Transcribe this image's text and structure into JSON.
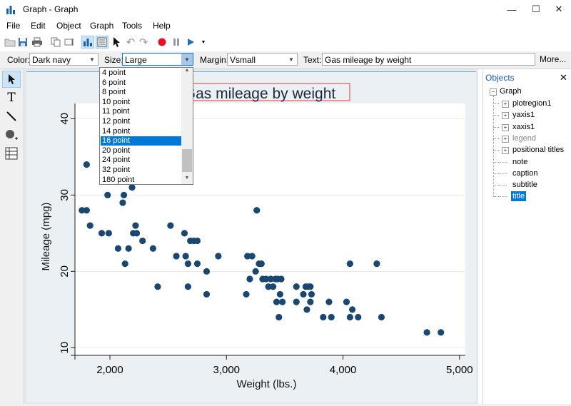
{
  "window": {
    "title": "Graph - Graph",
    "minimize": "—",
    "maximize": "☐",
    "close": "✕"
  },
  "menu": [
    "File",
    "Edit",
    "Object",
    "Graph",
    "Tools",
    "Help"
  ],
  "properties": {
    "color_label": "Color:",
    "color_value": "Dark navy",
    "size_label": "Size:",
    "size_value": "Large",
    "margin_label": "Margin:",
    "margin_value": "Vsmall",
    "text_label": "Text:",
    "text_value": "Gas mileage by weight",
    "more_label": "More..."
  },
  "size_dropdown": {
    "options": [
      "4 point",
      "6 point",
      "8 point",
      "10 point",
      "11 point",
      "12 point",
      "14 point",
      "16 point",
      "20 point",
      "24 point",
      "32 point",
      "180 point"
    ],
    "selected_index": 7
  },
  "objects_panel": {
    "title": "Objects",
    "close": "✕",
    "root": "Graph",
    "items": [
      {
        "label": "plotregion1",
        "expandable": true,
        "greyed": false,
        "selected": false
      },
      {
        "label": "yaxis1",
        "expandable": true,
        "greyed": false,
        "selected": false
      },
      {
        "label": "xaxis1",
        "expandable": true,
        "greyed": false,
        "selected": false
      },
      {
        "label": "legend",
        "expandable": true,
        "greyed": true,
        "selected": false
      },
      {
        "label": "positional titles",
        "expandable": true,
        "greyed": false,
        "selected": false
      },
      {
        "label": "note",
        "expandable": false,
        "greyed": false,
        "selected": false
      },
      {
        "label": "caption",
        "expandable": false,
        "greyed": false,
        "selected": false
      },
      {
        "label": "subtitle",
        "expandable": false,
        "greyed": false,
        "selected": false
      },
      {
        "label": "title",
        "expandable": false,
        "greyed": false,
        "selected": true
      }
    ]
  },
  "colors": {
    "marker": "#1a476f",
    "selection": "#0078d7",
    "title_box": "#e03c31"
  },
  "chart_data": {
    "type": "scatter",
    "title": "Gas mileage by weight",
    "xlabel": "Weight (lbs.)",
    "ylabel": "Mileage (mpg)",
    "xlim": [
      1700,
      5050
    ],
    "ylim": [
      9,
      42
    ],
    "xticks": [
      2000,
      3000,
      4000,
      5000
    ],
    "xtick_labels": [
      "2,000",
      "3,000",
      "4,000",
      "5,000"
    ],
    "yticks": [
      10,
      20,
      30,
      40
    ],
    "ytick_labels": [
      "10",
      "20",
      "30",
      "40"
    ],
    "grid": true,
    "points": [
      [
        1760,
        28
      ],
      [
        1800,
        28
      ],
      [
        1800,
        34
      ],
      [
        1830,
        26
      ],
      [
        1930,
        25
      ],
      [
        1980,
        30
      ],
      [
        1990,
        25
      ],
      [
        2070,
        23
      ],
      [
        2110,
        29
      ],
      [
        2120,
        30
      ],
      [
        2130,
        21
      ],
      [
        2160,
        23
      ],
      [
        2190,
        31
      ],
      [
        2200,
        25
      ],
      [
        2220,
        26
      ],
      [
        2230,
        25
      ],
      [
        2280,
        24
      ],
      [
        2370,
        23
      ],
      [
        2410,
        18
      ],
      [
        2520,
        26
      ],
      [
        2570,
        22
      ],
      [
        2640,
        25
      ],
      [
        2650,
        22
      ],
      [
        2670,
        18
      ],
      [
        2670,
        21
      ],
      [
        2690,
        24
      ],
      [
        2720,
        24
      ],
      [
        2750,
        24
      ],
      [
        2750,
        21
      ],
      [
        2830,
        20
      ],
      [
        2830,
        17
      ],
      [
        2930,
        22
      ],
      [
        3170,
        17
      ],
      [
        3180,
        22
      ],
      [
        3200,
        19
      ],
      [
        3220,
        22
      ],
      [
        3250,
        20
      ],
      [
        3260,
        28
      ],
      [
        3280,
        21
      ],
      [
        3300,
        21
      ],
      [
        3310,
        19
      ],
      [
        3340,
        19
      ],
      [
        3360,
        18
      ],
      [
        3380,
        19
      ],
      [
        3400,
        18
      ],
      [
        3420,
        19
      ],
      [
        3430,
        16
      ],
      [
        3440,
        19
      ],
      [
        3450,
        14
      ],
      [
        3460,
        17
      ],
      [
        3470,
        19
      ],
      [
        3480,
        16
      ],
      [
        3600,
        18
      ],
      [
        3600,
        16
      ],
      [
        3660,
        17
      ],
      [
        3680,
        18
      ],
      [
        3690,
        15
      ],
      [
        3700,
        18
      ],
      [
        3720,
        18
      ],
      [
        3720,
        16
      ],
      [
        3730,
        17
      ],
      [
        3830,
        14
      ],
      [
        3880,
        16
      ],
      [
        3900,
        14
      ],
      [
        4030,
        16
      ],
      [
        4060,
        14
      ],
      [
        4060,
        21
      ],
      [
        4080,
        15
      ],
      [
        4130,
        14
      ],
      [
        4290,
        21
      ],
      [
        4330,
        14
      ],
      [
        4720,
        12
      ],
      [
        4840,
        12
      ]
    ]
  }
}
